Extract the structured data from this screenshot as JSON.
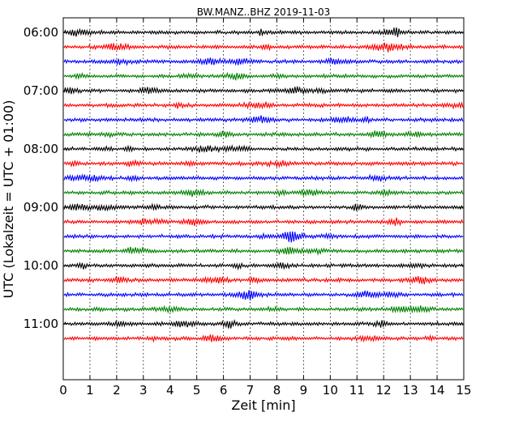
{
  "chart_data": {
    "type": "line",
    "title": "BW.MANZ..BHZ 2019-11-03",
    "xlabel": "Zeit  [min]",
    "ylabel": "UTC (Lokalzeit = UTC + 01:00)",
    "xlim": [
      0,
      15
    ],
    "x_ticks": [
      "0",
      "1",
      "2",
      "3",
      "4",
      "5",
      "6",
      "7",
      "8",
      "9",
      "10",
      "11",
      "12",
      "13",
      "14",
      "15"
    ],
    "y_tick_labels": [
      "06:00",
      "07:00",
      "08:00",
      "09:00",
      "10:00",
      "11:00"
    ],
    "grid": "vertical dotted",
    "trace_color_cycle": [
      "#000000",
      "#ff0000",
      "#0000ff",
      "#008000"
    ],
    "traces": [
      {
        "start": "06:00"
      },
      {
        "start": "06:15"
      },
      {
        "start": "06:30"
      },
      {
        "start": "06:45"
      },
      {
        "start": "07:00"
      },
      {
        "start": "07:15"
      },
      {
        "start": "07:30"
      },
      {
        "start": "07:45"
      },
      {
        "start": "08:00"
      },
      {
        "start": "08:15"
      },
      {
        "start": "08:30"
      },
      {
        "start": "08:45"
      },
      {
        "start": "09:00"
      },
      {
        "start": "09:15"
      },
      {
        "start": "09:30"
      },
      {
        "start": "09:45"
      },
      {
        "start": "10:00"
      },
      {
        "start": "10:15"
      },
      {
        "start": "10:30"
      },
      {
        "start": "10:45"
      },
      {
        "start": "11:00"
      },
      {
        "start": "11:15"
      }
    ]
  }
}
